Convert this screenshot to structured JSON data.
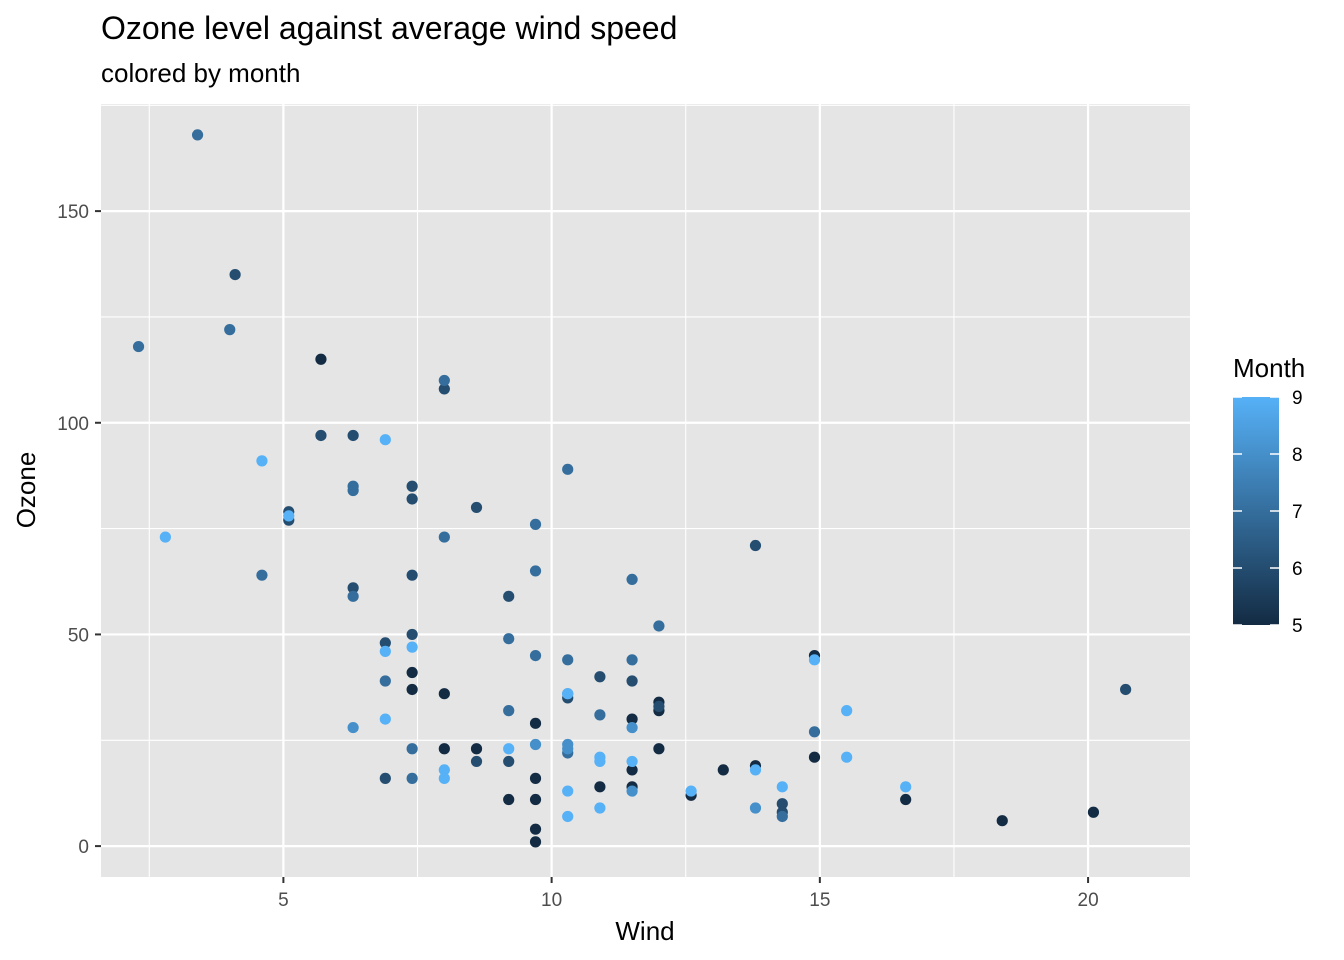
{
  "chart_data": {
    "type": "scatter",
    "title": "Ozone level against average wind speed",
    "subtitle": "colored by month",
    "xlabel": "Wind",
    "ylabel": "Ozone",
    "xlim": [
      1.6,
      21.9
    ],
    "ylim": [
      -7.3,
      175.3
    ],
    "x_ticks": [
      5,
      10,
      15,
      20
    ],
    "y_ticks": [
      0,
      50,
      100,
      150
    ],
    "grid": true,
    "legend": {
      "title": "Month",
      "position": "right",
      "type": "colorbar",
      "range": [
        5,
        9
      ],
      "ticks": [
        5,
        6,
        7,
        8,
        9
      ],
      "low_color": "#132B43",
      "high_color": "#56B1F7"
    },
    "colors": {
      "panel": "#e5e5e5",
      "grid": "#ffffff",
      "tick_text": "#4d4d4d"
    },
    "points": [
      {
        "x": 7.4,
        "y": 41,
        "month": 5
      },
      {
        "x": 8.0,
        "y": 36,
        "month": 5
      },
      {
        "x": 12.6,
        "y": 12,
        "month": 5
      },
      {
        "x": 11.5,
        "y": 18,
        "month": 5
      },
      {
        "x": 8.6,
        "y": 23,
        "month": 5
      },
      {
        "x": 13.8,
        "y": 19,
        "month": 5
      },
      {
        "x": 20.1,
        "y": 8,
        "month": 5
      },
      {
        "x": 9.7,
        "y": 16,
        "month": 5
      },
      {
        "x": 9.2,
        "y": 11,
        "month": 5
      },
      {
        "x": 10.9,
        "y": 14,
        "month": 5
      },
      {
        "x": 13.2,
        "y": 18,
        "month": 5
      },
      {
        "x": 11.5,
        "y": 14,
        "month": 5
      },
      {
        "x": 12.0,
        "y": 34,
        "month": 5
      },
      {
        "x": 18.4,
        "y": 6,
        "month": 5
      },
      {
        "x": 11.5,
        "y": 30,
        "month": 5
      },
      {
        "x": 9.7,
        "y": 11,
        "month": 5
      },
      {
        "x": 9.7,
        "y": 1,
        "month": 5
      },
      {
        "x": 16.6,
        "y": 11,
        "month": 5
      },
      {
        "x": 9.7,
        "y": 4,
        "month": 5
      },
      {
        "x": 12.0,
        "y": 32,
        "month": 5
      },
      {
        "x": 14.9,
        "y": 45,
        "month": 5
      },
      {
        "x": 5.7,
        "y": 115,
        "month": 5
      },
      {
        "x": 7.4,
        "y": 37,
        "month": 5
      },
      {
        "x": 8.0,
        "y": 23,
        "month": 5
      },
      {
        "x": 12.0,
        "y": 23,
        "month": 5
      },
      {
        "x": 9.7,
        "y": 29,
        "month": 5
      },
      {
        "x": 14.9,
        "y": 21,
        "month": 5
      },
      {
        "x": 6.9,
        "y": 48,
        "month": 6
      },
      {
        "x": 7.4,
        "y": 50,
        "month": 6
      },
      {
        "x": 10.3,
        "y": 35,
        "month": 6
      },
      {
        "x": 11.5,
        "y": 39,
        "month": 6
      },
      {
        "x": 12.0,
        "y": 33,
        "month": 6
      },
      {
        "x": 13.8,
        "y": 71,
        "month": 6
      },
      {
        "x": 20.7,
        "y": 37,
        "month": 6
      },
      {
        "x": 10.9,
        "y": 40,
        "month": 6
      },
      {
        "x": 9.2,
        "y": 20,
        "month": 6
      },
      {
        "x": 8.6,
        "y": 20,
        "month": 6
      },
      {
        "x": 6.9,
        "y": 16,
        "month": 6
      },
      {
        "x": 7.4,
        "y": 64,
        "month": 6
      },
      {
        "x": 14.3,
        "y": 10,
        "month": 6
      },
      {
        "x": 14.3,
        "y": 8,
        "month": 6
      },
      {
        "x": 6.3,
        "y": 61,
        "month": 6
      },
      {
        "x": 9.2,
        "y": 59,
        "month": 6
      },
      {
        "x": 5.1,
        "y": 79,
        "month": 6
      },
      {
        "x": 4.1,
        "y": 135,
        "month": 6
      },
      {
        "x": 6.3,
        "y": 97,
        "month": 6
      },
      {
        "x": 5.1,
        "y": 77,
        "month": 6
      },
      {
        "x": 5.7,
        "y": 97,
        "month": 6
      },
      {
        "x": 7.4,
        "y": 85,
        "month": 6
      },
      {
        "x": 8.0,
        "y": 108,
        "month": 6
      },
      {
        "x": 7.4,
        "y": 82,
        "month": 6
      },
      {
        "x": 8.6,
        "y": 80,
        "month": 6
      },
      {
        "x": 4.6,
        "y": 64,
        "month": 7
      },
      {
        "x": 9.2,
        "y": 49,
        "month": 7
      },
      {
        "x": 9.2,
        "y": 32,
        "month": 7
      },
      {
        "x": 10.9,
        "y": 31,
        "month": 7
      },
      {
        "x": 14.3,
        "y": 7,
        "month": 7
      },
      {
        "x": 12.0,
        "y": 52,
        "month": 7
      },
      {
        "x": 11.5,
        "y": 63,
        "month": 7
      },
      {
        "x": 14.9,
        "y": 27,
        "month": 7
      },
      {
        "x": 7.4,
        "y": 23,
        "month": 7
      },
      {
        "x": 7.4,
        "y": 16,
        "month": 7
      },
      {
        "x": 6.9,
        "y": 39,
        "month": 7
      },
      {
        "x": 11.5,
        "y": 44,
        "month": 7
      },
      {
        "x": 10.3,
        "y": 44,
        "month": 7
      },
      {
        "x": 10.3,
        "y": 22,
        "month": 7
      },
      {
        "x": 8.0,
        "y": 110,
        "month": 7
      },
      {
        "x": 9.7,
        "y": 76,
        "month": 7
      },
      {
        "x": 6.3,
        "y": 85,
        "month": 7
      },
      {
        "x": 6.3,
        "y": 84,
        "month": 7
      },
      {
        "x": 4.0,
        "y": 122,
        "month": 7
      },
      {
        "x": 3.4,
        "y": 168,
        "month": 7
      },
      {
        "x": 2.3,
        "y": 118,
        "month": 7
      },
      {
        "x": 10.3,
        "y": 89,
        "month": 7
      },
      {
        "x": 6.3,
        "y": 59,
        "month": 7
      },
      {
        "x": 8.0,
        "y": 73,
        "month": 7
      },
      {
        "x": 9.7,
        "y": 65,
        "month": 7
      },
      {
        "x": 9.7,
        "y": 45,
        "month": 7
      },
      {
        "x": 11.5,
        "y": 28,
        "month": 8
      },
      {
        "x": 11.5,
        "y": 13,
        "month": 8
      },
      {
        "x": 13.8,
        "y": 9,
        "month": 8
      },
      {
        "x": 10.3,
        "y": 36,
        "month": 8
      },
      {
        "x": 9.7,
        "y": 24,
        "month": 8
      },
      {
        "x": 10.3,
        "y": 24,
        "month": 8
      },
      {
        "x": 10.3,
        "y": 23,
        "month": 8
      },
      {
        "x": 6.3,
        "y": 28,
        "month": 8
      },
      {
        "x": 6.9,
        "y": 96,
        "month": 9
      },
      {
        "x": 4.6,
        "y": 91,
        "month": 9
      },
      {
        "x": 2.8,
        "y": 73,
        "month": 9
      },
      {
        "x": 6.9,
        "y": 46,
        "month": 9
      },
      {
        "x": 7.4,
        "y": 47,
        "month": 9
      },
      {
        "x": 5.1,
        "y": 78,
        "month": 9
      },
      {
        "x": 10.3,
        "y": 36,
        "month": 9
      },
      {
        "x": 14.9,
        "y": 44,
        "month": 9
      },
      {
        "x": 15.5,
        "y": 32,
        "month": 9
      },
      {
        "x": 6.9,
        "y": 30,
        "month": 9
      },
      {
        "x": 9.2,
        "y": 23,
        "month": 9
      },
      {
        "x": 10.9,
        "y": 21,
        "month": 9
      },
      {
        "x": 10.9,
        "y": 20,
        "month": 9
      },
      {
        "x": 11.5,
        "y": 20,
        "month": 9
      },
      {
        "x": 8.0,
        "y": 18,
        "month": 9
      },
      {
        "x": 8.0,
        "y": 16,
        "month": 9
      },
      {
        "x": 13.8,
        "y": 18,
        "month": 9
      },
      {
        "x": 12.6,
        "y": 13,
        "month": 9
      },
      {
        "x": 10.3,
        "y": 13,
        "month": 9
      },
      {
        "x": 14.3,
        "y": 14,
        "month": 9
      },
      {
        "x": 16.6,
        "y": 14,
        "month": 9
      },
      {
        "x": 15.5,
        "y": 21,
        "month": 9
      },
      {
        "x": 10.9,
        "y": 9,
        "month": 9
      },
      {
        "x": 10.3,
        "y": 7,
        "month": 9
      }
    ]
  }
}
